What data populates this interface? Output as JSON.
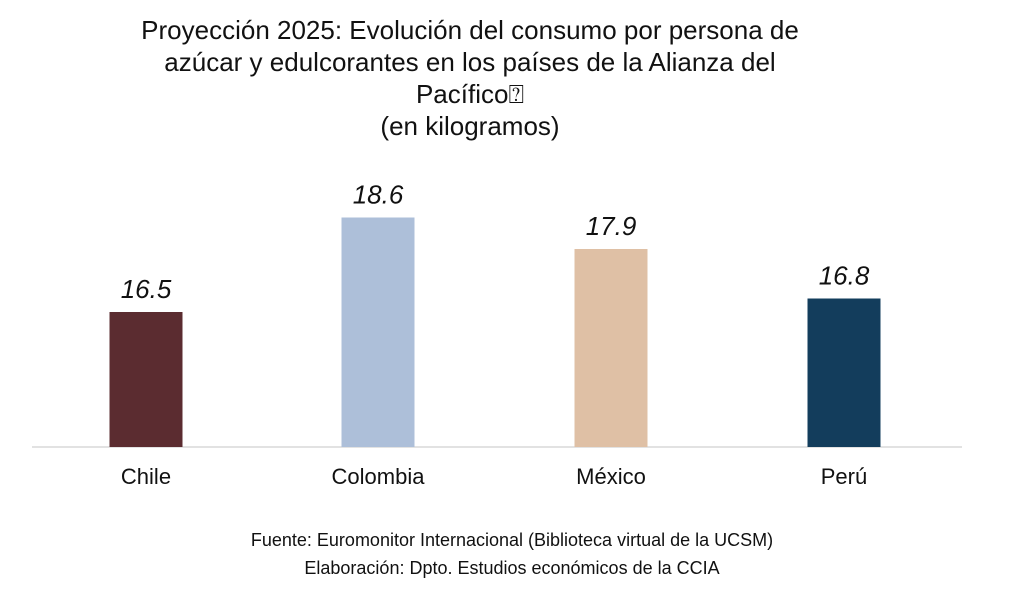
{
  "chart_data": {
    "type": "bar",
    "title_lines": [
      "Proyección 2025: Evolución del consumo por persona de",
      "azúcar y edulcorantes en los países de la Alianza del",
      "Pacífico⍰",
      "(en kilogramos)"
    ],
    "categories": [
      "Chile",
      "Colombia",
      "México",
      "Perú"
    ],
    "values": [
      16.5,
      18.6,
      17.9,
      16.8
    ],
    "value_labels": [
      "16.5",
      "18.6",
      "17.9",
      "16.8"
    ],
    "colors": [
      "#5b2c30",
      "#adbfd9",
      "#dfc0a5",
      "#133d5c"
    ],
    "ylim": [
      13.5,
      18.9
    ],
    "xlabel": "",
    "ylabel": "",
    "grid": false,
    "legend": "none"
  },
  "source": {
    "line1": "Fuente: Euromonitor Internacional (Biblioteca virtual de la UCSM)",
    "line2": "Elaboración: Dpto. Estudios económicos de la CCIA"
  }
}
